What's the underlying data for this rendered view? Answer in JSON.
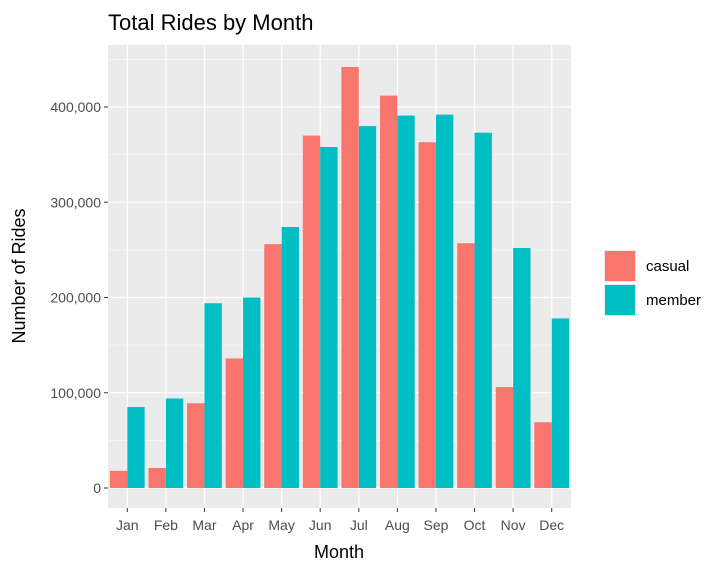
{
  "chart_data": {
    "type": "bar",
    "title": "Total Rides by Month",
    "xlabel": "Month",
    "ylabel": "Number of Rides",
    "categories": [
      "Jan",
      "Feb",
      "Mar",
      "Apr",
      "May",
      "Jun",
      "Jul",
      "Aug",
      "Sep",
      "Oct",
      "Nov",
      "Dec"
    ],
    "series": [
      {
        "name": "casual",
        "color": "#F8766D",
        "values": [
          18000,
          21000,
          89000,
          136000,
          256000,
          370000,
          442000,
          412000,
          363000,
          257000,
          106000,
          69000
        ]
      },
      {
        "name": "member",
        "color": "#00BFC4",
        "values": [
          85000,
          94000,
          194000,
          200000,
          274000,
          358000,
          380000,
          391000,
          392000,
          373000,
          252000,
          178000
        ]
      }
    ],
    "ylim": [
      0,
      450000
    ],
    "yticks": [
      0,
      100000,
      200000,
      300000,
      400000
    ],
    "ytick_labels": [
      "0",
      "100,000",
      "200,000",
      "300,000",
      "400,000"
    ],
    "grid": true,
    "legend_position": "right",
    "legend_title": ""
  }
}
